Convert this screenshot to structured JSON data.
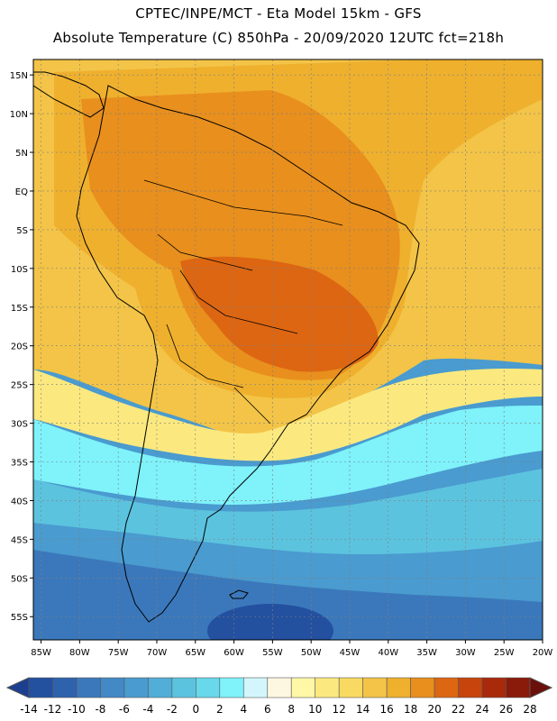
{
  "header": {
    "line1": "CPTEC/INPE/MCT -   Eta Model 15km - GFS",
    "line2": "Absolute Temperature (C) 850hPa - 20/09/2020 12UTC fct=218h"
  },
  "map": {
    "lat_labels": [
      "15N",
      "10N",
      "5N",
      "EQ",
      "5S",
      "10S",
      "15S",
      "20S",
      "25S",
      "30S",
      "35S",
      "40S",
      "45S",
      "50S",
      "55S"
    ],
    "lat_values": [
      15,
      10,
      5,
      0,
      -5,
      -10,
      -15,
      -20,
      -25,
      -30,
      -35,
      -40,
      -45,
      -50,
      -55
    ],
    "lon_labels": [
      "85W",
      "80W",
      "75W",
      "70W",
      "65W",
      "60W",
      "55W",
      "50W",
      "45W",
      "40W",
      "35W",
      "30W",
      "25W",
      "20W"
    ],
    "lon_values": [
      -85,
      -80,
      -75,
      -70,
      -65,
      -60,
      -55,
      -50,
      -45,
      -40,
      -35,
      -30,
      -25,
      -20
    ],
    "lat_range": [
      -58,
      17
    ],
    "lon_range": [
      -86,
      -20
    ],
    "field": "Absolute Temperature 850hPa"
  },
  "colorbar": {
    "tick_labels": [
      "-14",
      "-12",
      "-10",
      "-8",
      "-6",
      "-4",
      "-2",
      "0",
      "2",
      "4",
      "6",
      "8",
      "10",
      "12",
      "14",
      "16",
      "18",
      "20",
      "22",
      "24",
      "26",
      "28"
    ],
    "colors": [
      "#1d3f8f",
      "#23509f",
      "#2e62ad",
      "#3b78bb",
      "#4389c6",
      "#4a9bcf",
      "#52aed6",
      "#5cc3df",
      "#68d8ea",
      "#7ff2fa",
      "#d2f6fb",
      "#fdf6e1",
      "#fdf7a6",
      "#fbe97f",
      "#f8da62",
      "#f3c447",
      "#efb02e",
      "#e88f1d",
      "#dd6612",
      "#c7440d",
      "#a9290b",
      "#8a1a0a",
      "#6b0f0a"
    ]
  }
}
